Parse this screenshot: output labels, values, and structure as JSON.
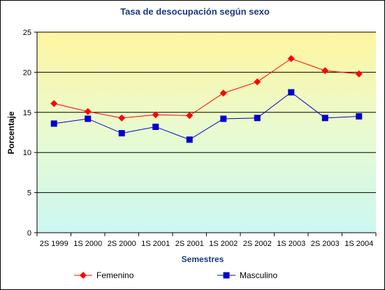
{
  "chart_data": {
    "type": "line",
    "title": "Tasa de desocupación según sexo",
    "xlabel": "Semestres",
    "ylabel": "Porcentaje",
    "categories": [
      "2S 1999",
      "1S 2000",
      "2S 2000",
      "1S 2001",
      "2S 2001",
      "1S 2002",
      "2S 2002",
      "1S 2003",
      "2S 2003",
      "1S 2004"
    ],
    "ylim": [
      0,
      25
    ],
    "yticks": [
      0,
      5,
      10,
      15,
      20,
      25
    ],
    "grid": true,
    "legend": "bottom",
    "series": [
      {
        "name": "Femenino",
        "color": "#ff0000",
        "marker": "diamond",
        "values": [
          16.1,
          15.1,
          14.3,
          14.7,
          14.6,
          17.4,
          18.8,
          21.7,
          20.2,
          19.8
        ]
      },
      {
        "name": "Masculino",
        "color": "#0000cc",
        "marker": "square",
        "values": [
          13.6,
          14.2,
          12.4,
          13.2,
          11.6,
          14.2,
          14.3,
          17.5,
          14.3,
          14.5
        ]
      }
    ]
  }
}
